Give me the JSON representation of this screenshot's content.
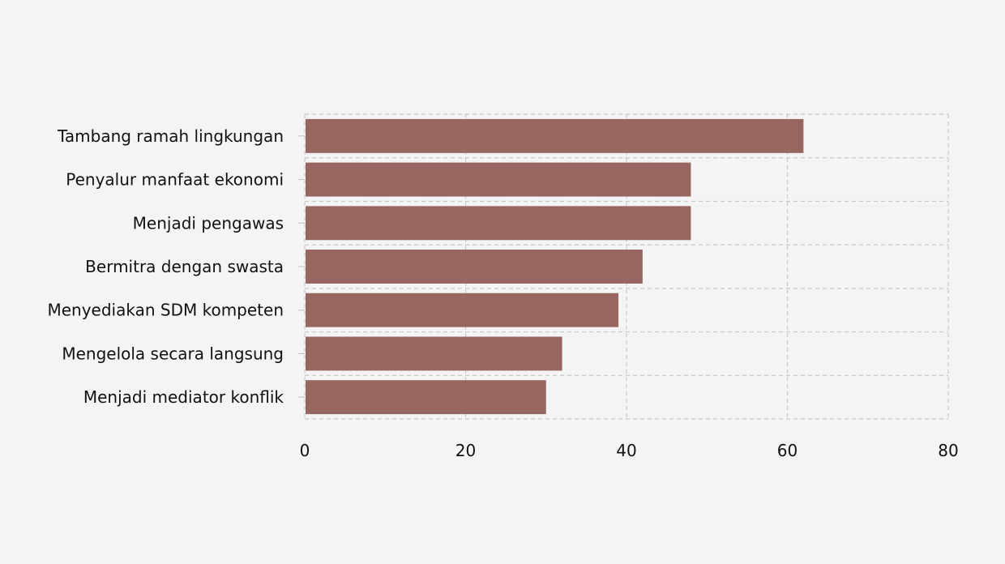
{
  "chart_data": {
    "type": "bar",
    "orientation": "horizontal",
    "categories": [
      "Tambang ramah lingkungan",
      "Penyalur manfaat ekonomi",
      "Menjadi pengawas",
      "Bermitra dengan swasta",
      "Menyediakan SDM kompeten",
      "Mengelola secara langsung",
      "Menjadi mediator konflik"
    ],
    "values": [
      62,
      48,
      48,
      42,
      39,
      32,
      30
    ],
    "xlim": [
      0,
      80
    ],
    "xticks": [
      0,
      20,
      40,
      60,
      80
    ],
    "xtick_labels": [
      "0",
      "20",
      "40",
      "60",
      "80"
    ],
    "grid": true,
    "bar_color": "#976660",
    "background_color": "#f4f4f4"
  }
}
